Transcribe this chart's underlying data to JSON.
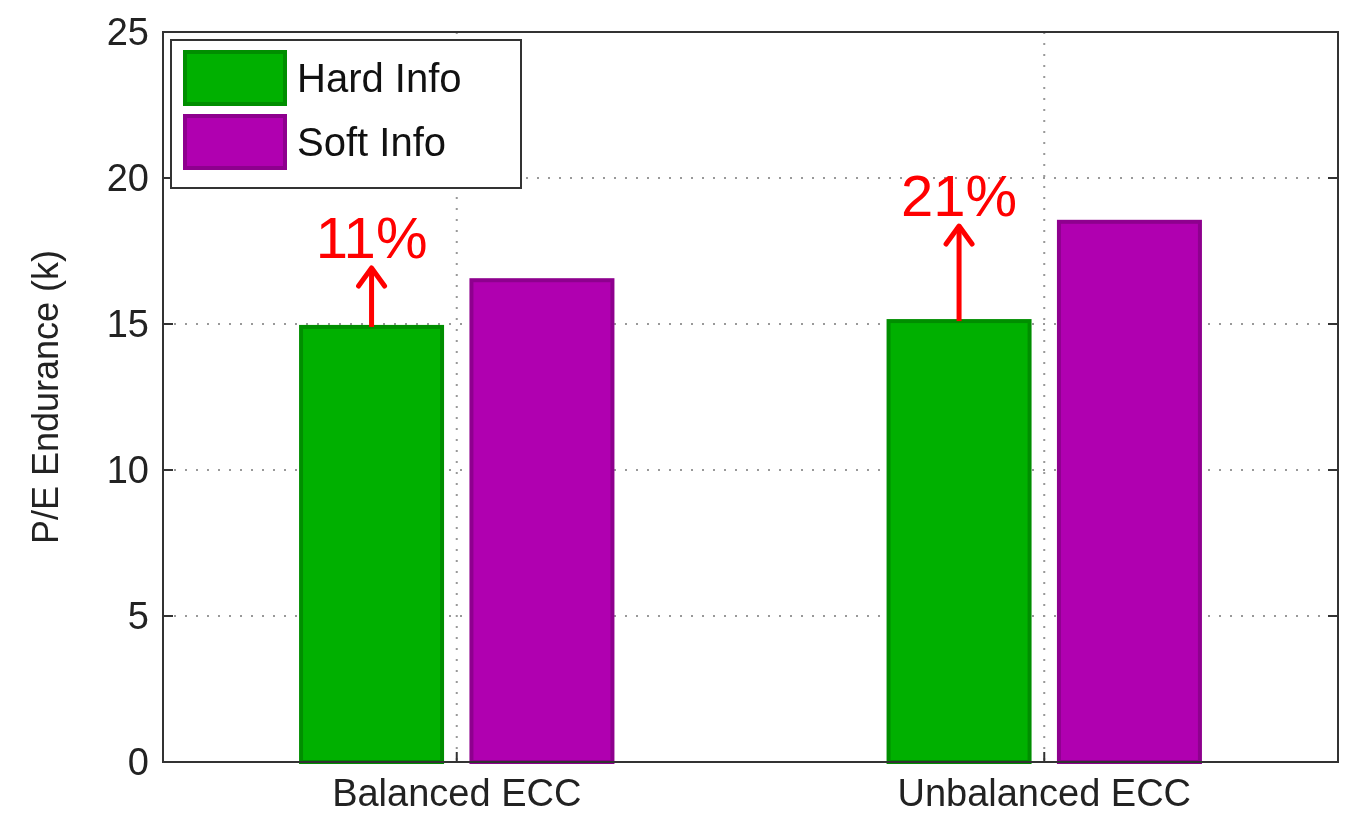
{
  "chart_data": {
    "type": "bar",
    "ylabel": "P/E Endurance (k)",
    "categories": [
      "Balanced ECC",
      "Unbalanced ECC"
    ],
    "series": [
      {
        "name": "Hard Info",
        "color": "#00b000",
        "values": [
          14.9,
          15.1
        ]
      },
      {
        "name": "Soft Info",
        "color": "#b000b0",
        "values": [
          16.5,
          18.5
        ]
      }
    ],
    "ylim": [
      0,
      25
    ],
    "yticks": [
      0,
      5,
      10,
      15,
      20,
      25
    ],
    "grid": true,
    "legend": "top left",
    "annotations": [
      {
        "text": "11%",
        "y": 14.9
      },
      {
        "text": "21%",
        "y": 15.1
      }
    ]
  }
}
